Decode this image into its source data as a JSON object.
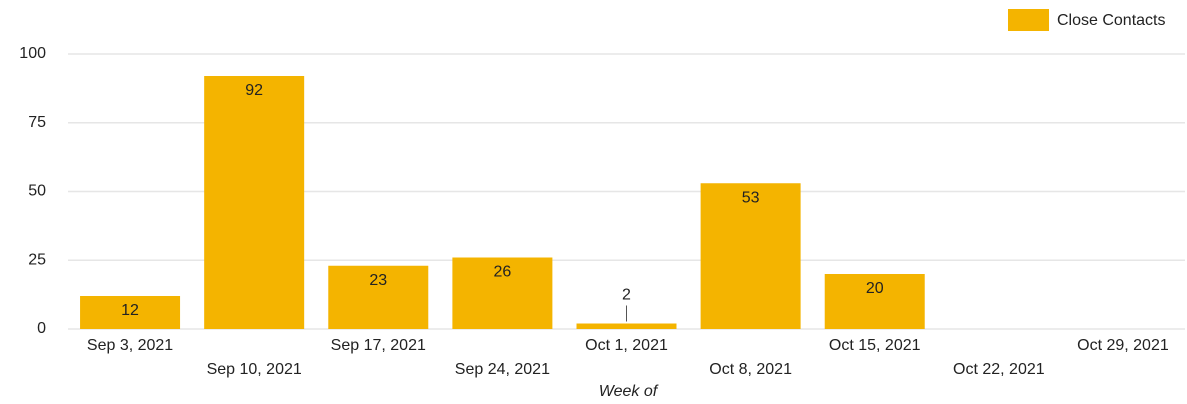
{
  "chart_data": {
    "type": "bar",
    "x_label": "Week of",
    "categories": [
      "Sep 3, 2021",
      "Sep 10, 2021",
      "Sep 17, 2021",
      "Sep 24, 2021",
      "Oct 1, 2021",
      "Oct 8, 2021",
      "Oct 15, 2021",
      "Oct 22, 2021",
      "Oct 29, 2021"
    ],
    "series": [
      {
        "name": "Close Contacts",
        "color": "#f4b400",
        "values": [
          12,
          92,
          23,
          26,
          2,
          53,
          20,
          null,
          null
        ]
      }
    ],
    "ylim": [
      0,
      100
    ],
    "yticks": [
      0,
      25,
      50,
      75,
      100
    ],
    "grid": true,
    "legend": "top-right"
  }
}
